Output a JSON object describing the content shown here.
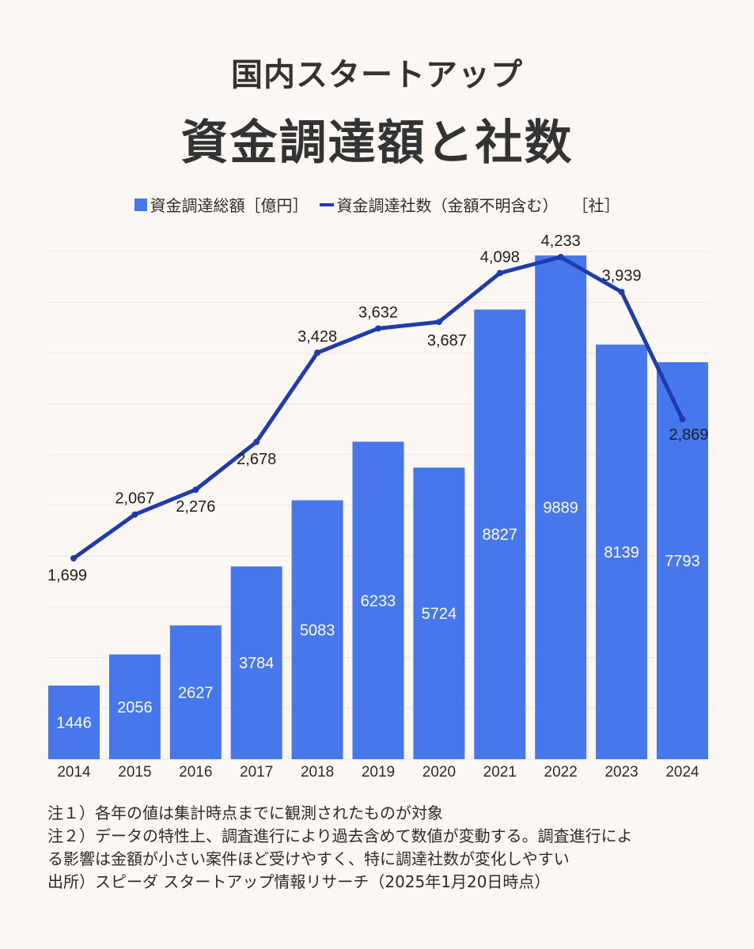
{
  "header": {
    "title_line1": "国内スタートアップ",
    "title_line2": "資金調達額と社数"
  },
  "legend": {
    "bar_label": "資金調達総額［億円］",
    "line_label": "資金調達社数（金額不明含む）",
    "line_unit": "［社］"
  },
  "notes": {
    "note1": "注１）各年の値は集計時点までに観測されたものが対象",
    "note2": "注２）データの特性上、調査進行により過去含めて数値が変動する。調査進行によ",
    "note2_cont": "る影響は金額が小さい案件ほど受けやすく、特に調達社数が変化しやすい",
    "source": "出所）スピーダ スタートアップ情報リサーチ（2025年1月20日時点）"
  },
  "colors": {
    "bar": "#4677ec",
    "line": "#1f3cad",
    "background": "#fdf7f3"
  },
  "chart_data": {
    "type": "bar",
    "categories": [
      "2014",
      "2015",
      "2016",
      "2017",
      "2018",
      "2019",
      "2020",
      "2021",
      "2022",
      "2023",
      "2024"
    ],
    "series": [
      {
        "name": "資金調達総額［億円］",
        "type": "bar",
        "values": [
          1446,
          2056,
          2627,
          3784,
          5083,
          6233,
          5724,
          8827,
          9889,
          8139,
          7793
        ],
        "labels": [
          "1446",
          "2056",
          "2627",
          "3784",
          "5083",
          "6233",
          "5724",
          "8827",
          "9889",
          "8139",
          "7793"
        ]
      },
      {
        "name": "資金調達社数（金額不明含む）［社］",
        "type": "line",
        "values": [
          1699,
          2067,
          2276,
          2678,
          3428,
          3632,
          3687,
          4098,
          4233,
          3939,
          2869
        ],
        "labels": [
          "1,699",
          "2,067",
          "2,276",
          "2,678",
          "3,428",
          "3,632",
          "3,687",
          "4,098",
          "4,233",
          "3,939",
          "2,869"
        ]
      }
    ],
    "bar_axis_range": [
      0,
      10000
    ],
    "line_axis_range": [
      700,
      4400
    ],
    "grid": true,
    "legend_position": "top-center"
  }
}
